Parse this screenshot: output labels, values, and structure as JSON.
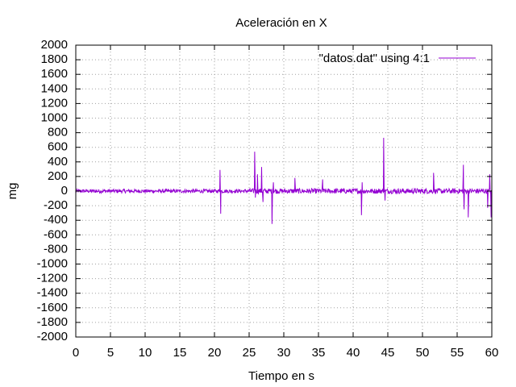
{
  "chart_data": {
    "type": "line",
    "title": "Aceleración en X",
    "xlabel": "Tiempo en s",
    "ylabel": "mg",
    "xlim": [
      0,
      60
    ],
    "ylim": [
      -2000,
      2000
    ],
    "x_ticks": [
      "0",
      "5",
      "10",
      "15",
      "20",
      "25",
      "30",
      "35",
      "40",
      "45",
      "50",
      "55",
      "60"
    ],
    "y_ticks": [
      "2000",
      "1800",
      "1600",
      "1400",
      "1200",
      "1000",
      "800",
      "600",
      "400",
      "200",
      "0",
      "-200",
      "-400",
      "-600",
      "-800",
      "-1000",
      "-1200",
      "-1400",
      "-1600",
      "-1800",
      "-2000"
    ],
    "grid": true,
    "legend_position": "top-right",
    "series": [
      {
        "name": "\"datos.dat\" using 4:1",
        "color": "#9400d3",
        "baseline_noise": 25,
        "spikes": [
          {
            "x": 20.8,
            "y": 290
          },
          {
            "x": 20.9,
            "y": -310
          },
          {
            "x": 25.8,
            "y": 540
          },
          {
            "x": 25.9,
            "y": -90
          },
          {
            "x": 26.2,
            "y": 230
          },
          {
            "x": 26.8,
            "y": 330
          },
          {
            "x": 27.0,
            "y": -150
          },
          {
            "x": 28.3,
            "y": -450
          },
          {
            "x": 28.5,
            "y": 120
          },
          {
            "x": 31.6,
            "y": 180
          },
          {
            "x": 35.6,
            "y": 160
          },
          {
            "x": 41.2,
            "y": -330
          },
          {
            "x": 41.3,
            "y": 120
          },
          {
            "x": 44.4,
            "y": 730
          },
          {
            "x": 44.6,
            "y": -130
          },
          {
            "x": 51.6,
            "y": 250
          },
          {
            "x": 55.9,
            "y": 360
          },
          {
            "x": 56.0,
            "y": -250
          },
          {
            "x": 56.6,
            "y": -360
          },
          {
            "x": 59.4,
            "y": -230
          },
          {
            "x": 59.7,
            "y": 230
          },
          {
            "x": 59.9,
            "y": -360
          }
        ]
      }
    ]
  }
}
